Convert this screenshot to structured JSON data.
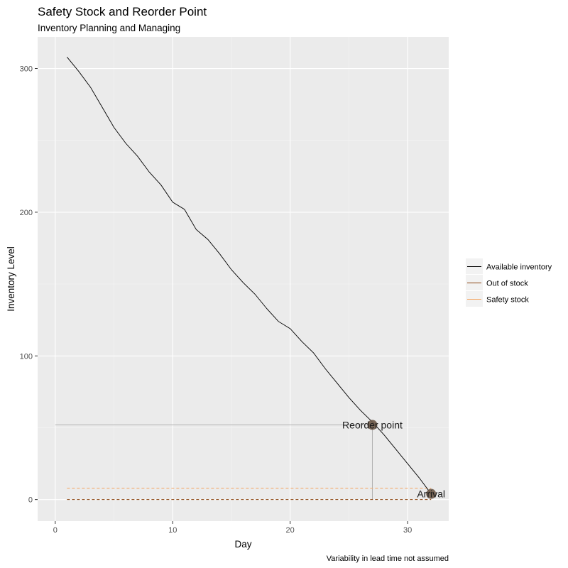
{
  "chart_data": {
    "type": "line",
    "title": "Safety Stock and Reorder Point",
    "subtitle": "Inventory Planning and Managing",
    "xlabel": "Day",
    "ylabel": "Inventory Level",
    "caption": "Variability in lead time not assumed",
    "xlim": [
      -1.5,
      33.5
    ],
    "ylim": [
      -15,
      322
    ],
    "xticks": [
      0,
      10,
      20,
      30
    ],
    "yticks": [
      0,
      100,
      200,
      300
    ],
    "grid": true,
    "legend": {
      "position": "right",
      "entries": [
        {
          "label": "Available inventory",
          "color": "#000000"
        },
        {
          "label": "Out of stock",
          "color": "#8b4513"
        },
        {
          "label": "Safety stock",
          "color": "#f4a460"
        }
      ]
    },
    "series": [
      {
        "name": "Available inventory",
        "color": "#000000",
        "x": [
          1,
          2,
          3,
          4,
          5,
          6,
          7,
          8,
          9,
          10,
          11,
          12,
          13,
          14,
          15,
          16,
          17,
          18,
          19,
          20,
          21,
          22,
          23,
          24,
          25,
          26,
          27,
          28,
          29,
          30,
          31,
          32
        ],
        "y": [
          308,
          298,
          287,
          273,
          259,
          248,
          239,
          228,
          219,
          207,
          202,
          188,
          181,
          171,
          160,
          151,
          143,
          133,
          124,
          119,
          110,
          102,
          91,
          81,
          71,
          62,
          54,
          45,
          35,
          25,
          15,
          4
        ]
      }
    ],
    "safety_stock": {
      "value": 8,
      "x_range": [
        1,
        32
      ],
      "color": "#f4a460"
    },
    "out_of_stock": {
      "value": 0,
      "x_range": [
        1,
        32
      ],
      "color": "#8b4513"
    },
    "reorder_point": {
      "label": "Reorder point",
      "x": 27,
      "y": 52,
      "color": "#6b5847"
    },
    "arrival": {
      "label": "Arrival",
      "x": 32,
      "y": 4,
      "color": "#6b5847"
    },
    "reorder_guides": {
      "color": "#b0b0b0",
      "x_start": 0
    }
  }
}
